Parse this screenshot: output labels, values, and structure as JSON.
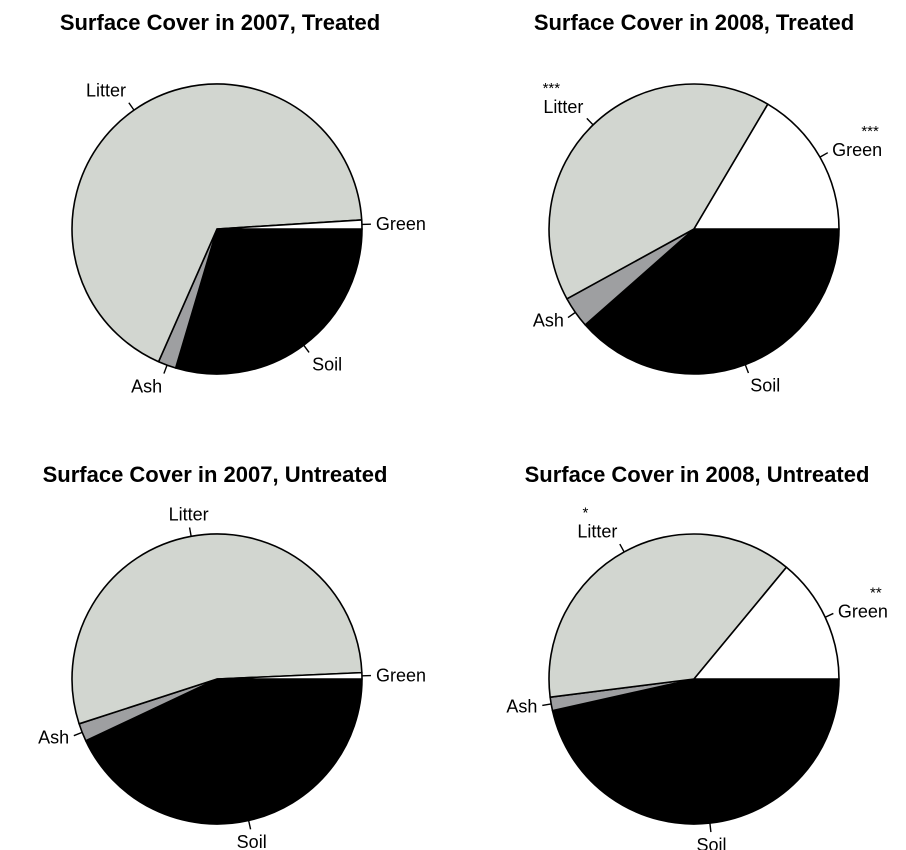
{
  "chart_data": [
    {
      "type": "pie",
      "title": "Surface Cover in 2007, Treated",
      "slices": [
        {
          "label": "Soil",
          "value": 29.6,
          "color": "#000000",
          "significance": ""
        },
        {
          "label": "Ash",
          "value": 2.0,
          "color": "#9e9fa1",
          "significance": ""
        },
        {
          "label": "Litter",
          "value": 67.4,
          "color": "#d2d6d0",
          "significance": ""
        },
        {
          "label": "Green",
          "value": 1.0,
          "color": "#ffffff",
          "significance": ""
        }
      ]
    },
    {
      "type": "pie",
      "title": "Surface Cover in 2008, Treated",
      "slices": [
        {
          "label": "Soil",
          "value": 38.5,
          "color": "#000000",
          "significance": ""
        },
        {
          "label": "Ash",
          "value": 3.5,
          "color": "#9e9fa1",
          "significance": ""
        },
        {
          "label": "Litter",
          "value": 41.5,
          "color": "#d2d6d0",
          "significance": "***"
        },
        {
          "label": "Green",
          "value": 16.5,
          "color": "#ffffff",
          "significance": "***"
        }
      ]
    },
    {
      "type": "pie",
      "title": "Surface Cover in 2007, Untreated",
      "slices": [
        {
          "label": "Soil",
          "value": 43.0,
          "color": "#000000",
          "significance": ""
        },
        {
          "label": "Ash",
          "value": 2.0,
          "color": "#9e9fa1",
          "significance": ""
        },
        {
          "label": "Litter",
          "value": 54.3,
          "color": "#d2d6d0",
          "significance": ""
        },
        {
          "label": "Green",
          "value": 0.7,
          "color": "#ffffff",
          "significance": ""
        }
      ]
    },
    {
      "type": "pie",
      "title": "Surface Cover in 2008, Untreated",
      "slices": [
        {
          "label": "Soil",
          "value": 46.5,
          "color": "#000000",
          "significance": ""
        },
        {
          "label": "Ash",
          "value": 1.5,
          "color": "#9e9fa1",
          "significance": ""
        },
        {
          "label": "Litter",
          "value": 38.0,
          "color": "#d2d6d0",
          "significance": "*"
        },
        {
          "label": "Green",
          "value": 14.0,
          "color": "#ffffff",
          "significance": "**"
        }
      ]
    }
  ]
}
